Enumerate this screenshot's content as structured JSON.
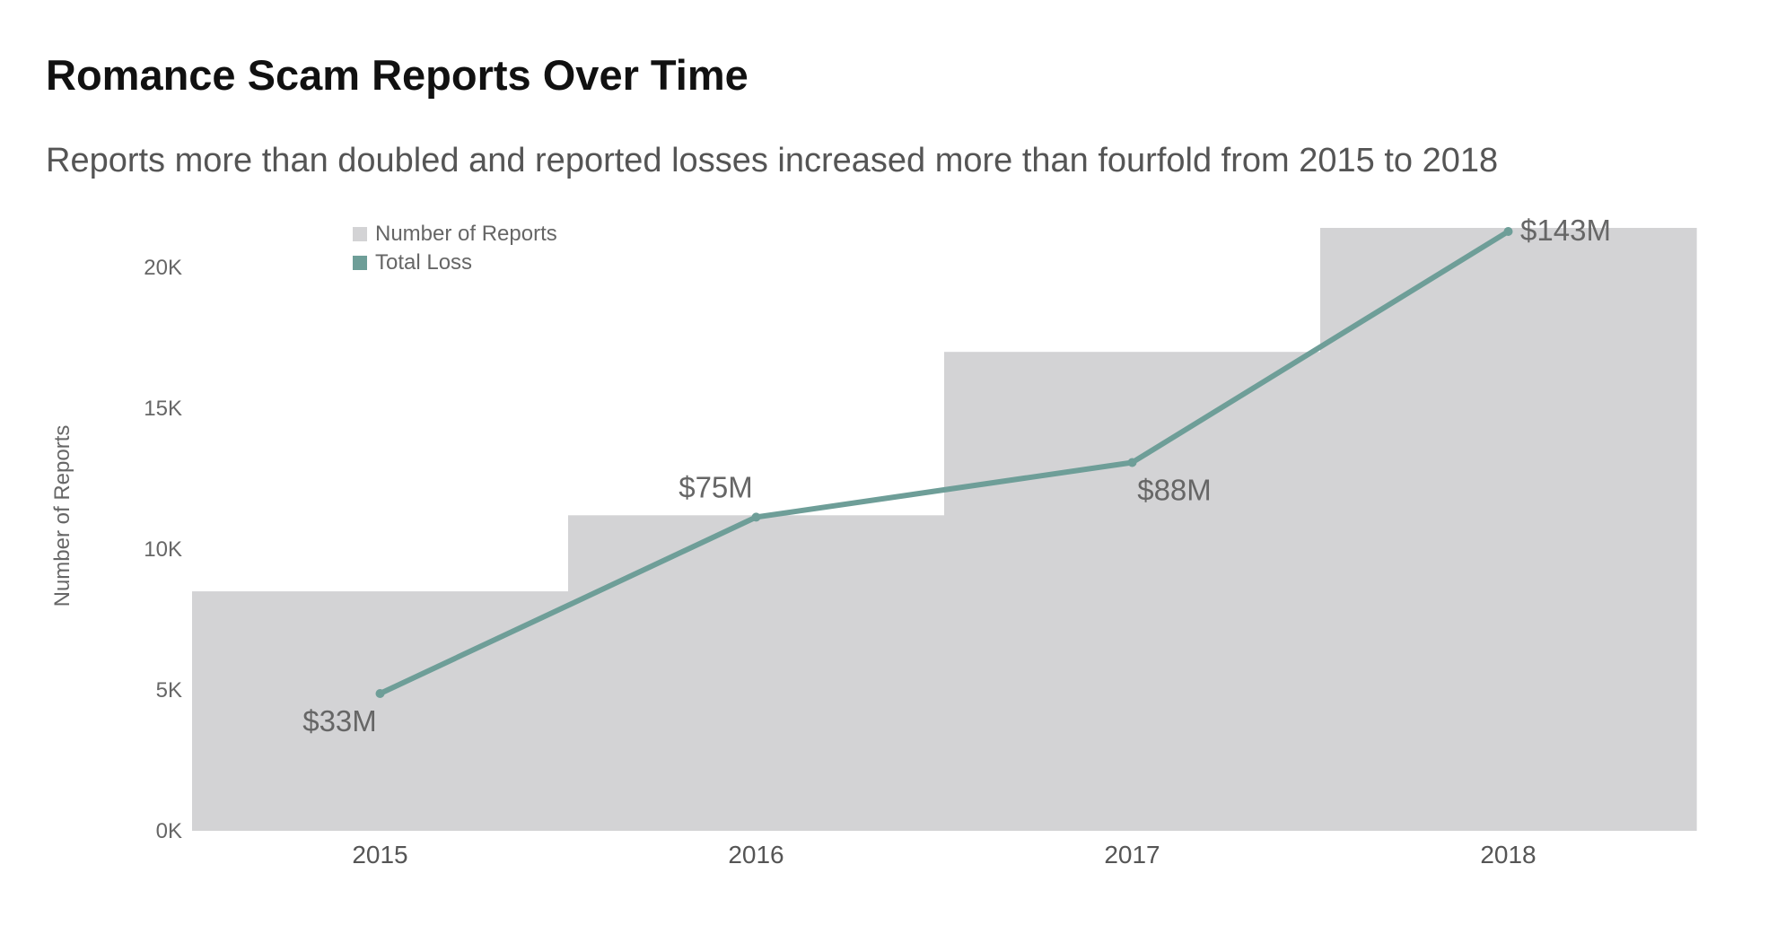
{
  "header": {
    "title": "Romance Scam Reports Over Time",
    "subtitle": "Reports more than doubled and reported losses increased more than fourfold from 2015 to 2018"
  },
  "chart_data": {
    "type": "bar",
    "categories": [
      "2015",
      "2016",
      "2017",
      "2018"
    ],
    "ylabel": "Number of Reports",
    "xlabel": "",
    "ylim": [
      0,
      21500
    ],
    "yticks": [
      0,
      5000,
      10000,
      15000,
      20000
    ],
    "ytick_labels": [
      "0K",
      "5K",
      "10K",
      "15K",
      "20K"
    ],
    "grid": false,
    "legend": {
      "placement": "top-left",
      "entries": [
        {
          "name": "Number of Reports",
          "color": "#d3d3d5"
        },
        {
          "name": "Total Loss",
          "color": "#6e9e98"
        }
      ]
    },
    "series": [
      {
        "name": "Number of Reports",
        "kind": "bar",
        "color": "#d3d3d5",
        "values": [
          8500,
          11200,
          17000,
          21400
        ]
      },
      {
        "name": "Total Loss",
        "kind": "line",
        "color": "#6e9e98",
        "values": [
          33,
          75,
          88,
          143
        ],
        "unit": "$M",
        "labels": [
          "$33M",
          "$75M",
          "$88M",
          "$143M"
        ]
      }
    ]
  }
}
